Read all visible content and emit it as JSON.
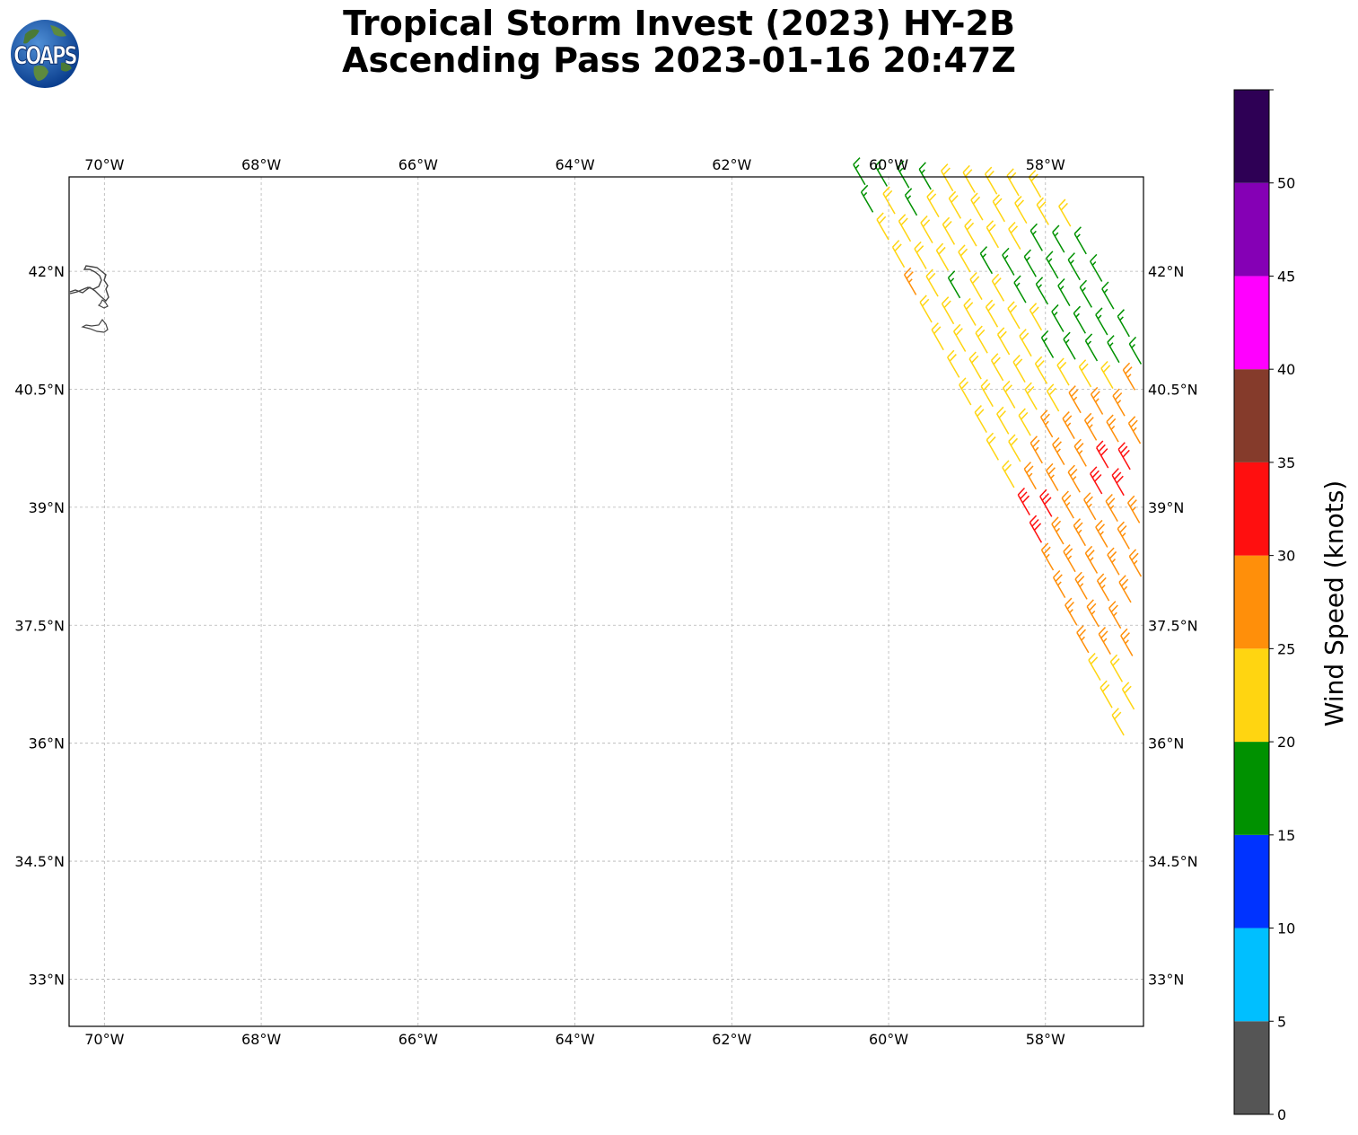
{
  "title": {
    "line1": "Tropical Storm Invest (2023) HY-2B",
    "line2": "Ascending Pass 2023-01-16 20:47Z"
  },
  "logo": {
    "text": "COAPS",
    "icon": "globe-logo-icon"
  },
  "map": {
    "lon_range": [
      -70.45,
      -56.75
    ],
    "lat_range": [
      32.4,
      43.2
    ],
    "lon_ticks": [
      {
        "value": -70,
        "label": "70°W"
      },
      {
        "value": -68,
        "label": "68°W"
      },
      {
        "value": -66,
        "label": "66°W"
      },
      {
        "value": -64,
        "label": "64°W"
      },
      {
        "value": -62,
        "label": "62°W"
      },
      {
        "value": -60,
        "label": "60°W"
      },
      {
        "value": -58,
        "label": "58°W"
      }
    ],
    "lat_ticks": [
      {
        "value": 42,
        "label": "42°N"
      },
      {
        "value": 40.5,
        "label": "40.5°N"
      },
      {
        "value": 39,
        "label": "39°N"
      },
      {
        "value": 37.5,
        "label": "37.5°N"
      },
      {
        "value": 36,
        "label": "36°N"
      },
      {
        "value": 34.5,
        "label": "34.5°N"
      },
      {
        "value": 33,
        "label": "33°N"
      }
    ],
    "gridlines": true,
    "coastline": "Cape Cod and islands"
  },
  "colorbar": {
    "label": "Wind Speed (knots)",
    "bins": [
      {
        "min": 0,
        "max": 5,
        "color": "#555555"
      },
      {
        "min": 5,
        "max": 10,
        "color": "#00bfff"
      },
      {
        "min": 10,
        "max": 15,
        "color": "#0033ff"
      },
      {
        "min": 15,
        "max": 20,
        "color": "#009100"
      },
      {
        "min": 20,
        "max": 25,
        "color": "#ffd511"
      },
      {
        "min": 25,
        "max": 30,
        "color": "#ff8f0a"
      },
      {
        "min": 30,
        "max": 35,
        "color": "#ff0f0f"
      },
      {
        "min": 35,
        "max": 40,
        "color": "#853b2b"
      },
      {
        "min": 40,
        "max": 45,
        "color": "#ff00ff"
      },
      {
        "min": 45,
        "max": 50,
        "color": "#8500b5"
      },
      {
        "min": 50,
        "max": 55,
        "color": "#2e0055"
      }
    ],
    "ticks": [
      "0",
      "5",
      "10",
      "15",
      "20",
      "25",
      "30",
      "35",
      "40",
      "45",
      "50"
    ]
  },
  "swath": {
    "rows": [
      {
        "lat": 43.1,
        "lon_start": -60.3,
        "n": 9,
        "speeds": [
          17,
          17,
          17,
          17,
          22,
          22,
          22,
          22,
          22
        ]
      },
      {
        "lat": 42.75,
        "lon_start": -60.2,
        "n": 10,
        "speeds": [
          17,
          22,
          17,
          22,
          22,
          22,
          22,
          22,
          22,
          22
        ]
      },
      {
        "lat": 42.4,
        "lon_start": -60.0,
        "n": 10,
        "speeds": [
          22,
          22,
          22,
          22,
          22,
          22,
          22,
          17,
          17,
          17
        ]
      },
      {
        "lat": 42.05,
        "lon_start": -59.8,
        "n": 10,
        "speeds": [
          22,
          22,
          22,
          22,
          17,
          17,
          17,
          17,
          17,
          17
        ]
      },
      {
        "lat": 41.7,
        "lon_start": -59.65,
        "n": 10,
        "speeds": [
          27,
          22,
          17,
          22,
          22,
          17,
          17,
          17,
          17,
          17
        ]
      },
      {
        "lat": 41.35,
        "lon_start": -59.45,
        "n": 10,
        "speeds": [
          22,
          22,
          22,
          22,
          22,
          22,
          17,
          17,
          17,
          17
        ]
      },
      {
        "lat": 41.0,
        "lon_start": -59.3,
        "n": 10,
        "speeds": [
          22,
          22,
          22,
          22,
          22,
          17,
          17,
          17,
          17,
          17
        ]
      },
      {
        "lat": 40.65,
        "lon_start": -59.1,
        "n": 10,
        "speeds": [
          22,
          22,
          22,
          22,
          22,
          22,
          22,
          22,
          27,
          27
        ]
      },
      {
        "lat": 40.3,
        "lon_start": -58.95,
        "n": 10,
        "speeds": [
          22,
          22,
          22,
          22,
          22,
          27,
          27,
          27,
          27,
          27
        ]
      },
      {
        "lat": 39.95,
        "lon_start": -58.75,
        "n": 9,
        "speeds": [
          22,
          22,
          22,
          27,
          27,
          27,
          27,
          27,
          27
        ]
      },
      {
        "lat": 39.6,
        "lon_start": -58.6,
        "n": 9,
        "speeds": [
          22,
          22,
          27,
          27,
          27,
          32,
          32,
          27,
          27
        ]
      },
      {
        "lat": 39.25,
        "lon_start": -58.4,
        "n": 9,
        "speeds": [
          22,
          27,
          27,
          27,
          32,
          32,
          27,
          27,
          27
        ]
      },
      {
        "lat": 38.9,
        "lon_start": -58.2,
        "n": 8,
        "speeds": [
          32,
          32,
          27,
          27,
          27,
          27,
          27,
          27
        ]
      },
      {
        "lat": 38.55,
        "lon_start": -58.05,
        "n": 8,
        "speeds": [
          32,
          27,
          27,
          27,
          27,
          27,
          27,
          27
        ]
      },
      {
        "lat": 38.2,
        "lon_start": -57.9,
        "n": 7,
        "speeds": [
          27,
          27,
          27,
          27,
          27,
          27,
          27
        ]
      },
      {
        "lat": 37.85,
        "lon_start": -57.75,
        "n": 6,
        "speeds": [
          27,
          27,
          27,
          27,
          27,
          27
        ]
      },
      {
        "lat": 37.5,
        "lon_start": -57.6,
        "n": 5,
        "speeds": [
          27,
          27,
          27,
          27,
          27
        ]
      },
      {
        "lat": 37.15,
        "lon_start": -57.45,
        "n": 4,
        "speeds": [
          27,
          27,
          27,
          22
        ]
      },
      {
        "lat": 36.8,
        "lon_start": -57.3,
        "n": 3,
        "speeds": [
          22,
          22,
          22
        ]
      },
      {
        "lat": 36.45,
        "lon_start": -57.15,
        "n": 2,
        "speeds": [
          22,
          22
        ]
      },
      {
        "lat": 36.1,
        "lon_start": -57.0,
        "n": 1,
        "speeds": [
          22
        ]
      }
    ],
    "spacing_lon": 0.28,
    "direction_deg": 330
  }
}
